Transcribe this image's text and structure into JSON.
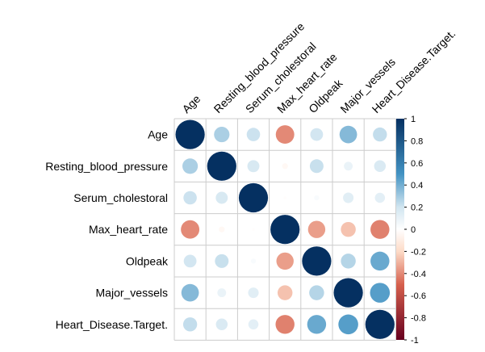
{
  "chart_data": {
    "type": "heatmap",
    "variables": [
      "Age",
      "Resting_blood_pressure",
      "Serum_cholestoral",
      "Max_heart_rate",
      "Oldpeak",
      "Major_vessels",
      "Heart_Disease.Target."
    ],
    "matrix": [
      [
        1.0,
        0.28,
        0.21,
        -0.4,
        0.19,
        0.36,
        0.23
      ],
      [
        0.28,
        1.0,
        0.17,
        -0.04,
        0.22,
        0.09,
        0.16
      ],
      [
        0.21,
        0.17,
        1.0,
        -0.01,
        0.03,
        0.13,
        0.12
      ],
      [
        -0.4,
        -0.04,
        -0.01,
        1.0,
        -0.35,
        -0.26,
        -0.42
      ],
      [
        0.19,
        0.22,
        0.03,
        -0.35,
        1.0,
        0.26,
        0.42
      ],
      [
        0.36,
        0.09,
        0.13,
        -0.26,
        0.26,
        1.0,
        0.46
      ],
      [
        0.23,
        0.16,
        0.12,
        -0.42,
        0.42,
        0.46,
        1.0
      ]
    ],
    "method": "circle",
    "colorbar": {
      "ticks": [
        "1",
        "0.8",
        "0.6",
        "0.4",
        "0.2",
        "0",
        "-0.2",
        "-0.4",
        "-0.6",
        "-0.8",
        "-1"
      ],
      "range": [
        -1,
        1
      ]
    },
    "colors": {
      "strong_negative": "#67001F",
      "negative": "#D6604D",
      "light_negative": "#FDDBC7",
      "neutral": "#FFFFFF",
      "light_positive": "#D1E5F0",
      "positive": "#4393C3",
      "strong_positive": "#053061",
      "grid": "#CCCCCC"
    }
  }
}
